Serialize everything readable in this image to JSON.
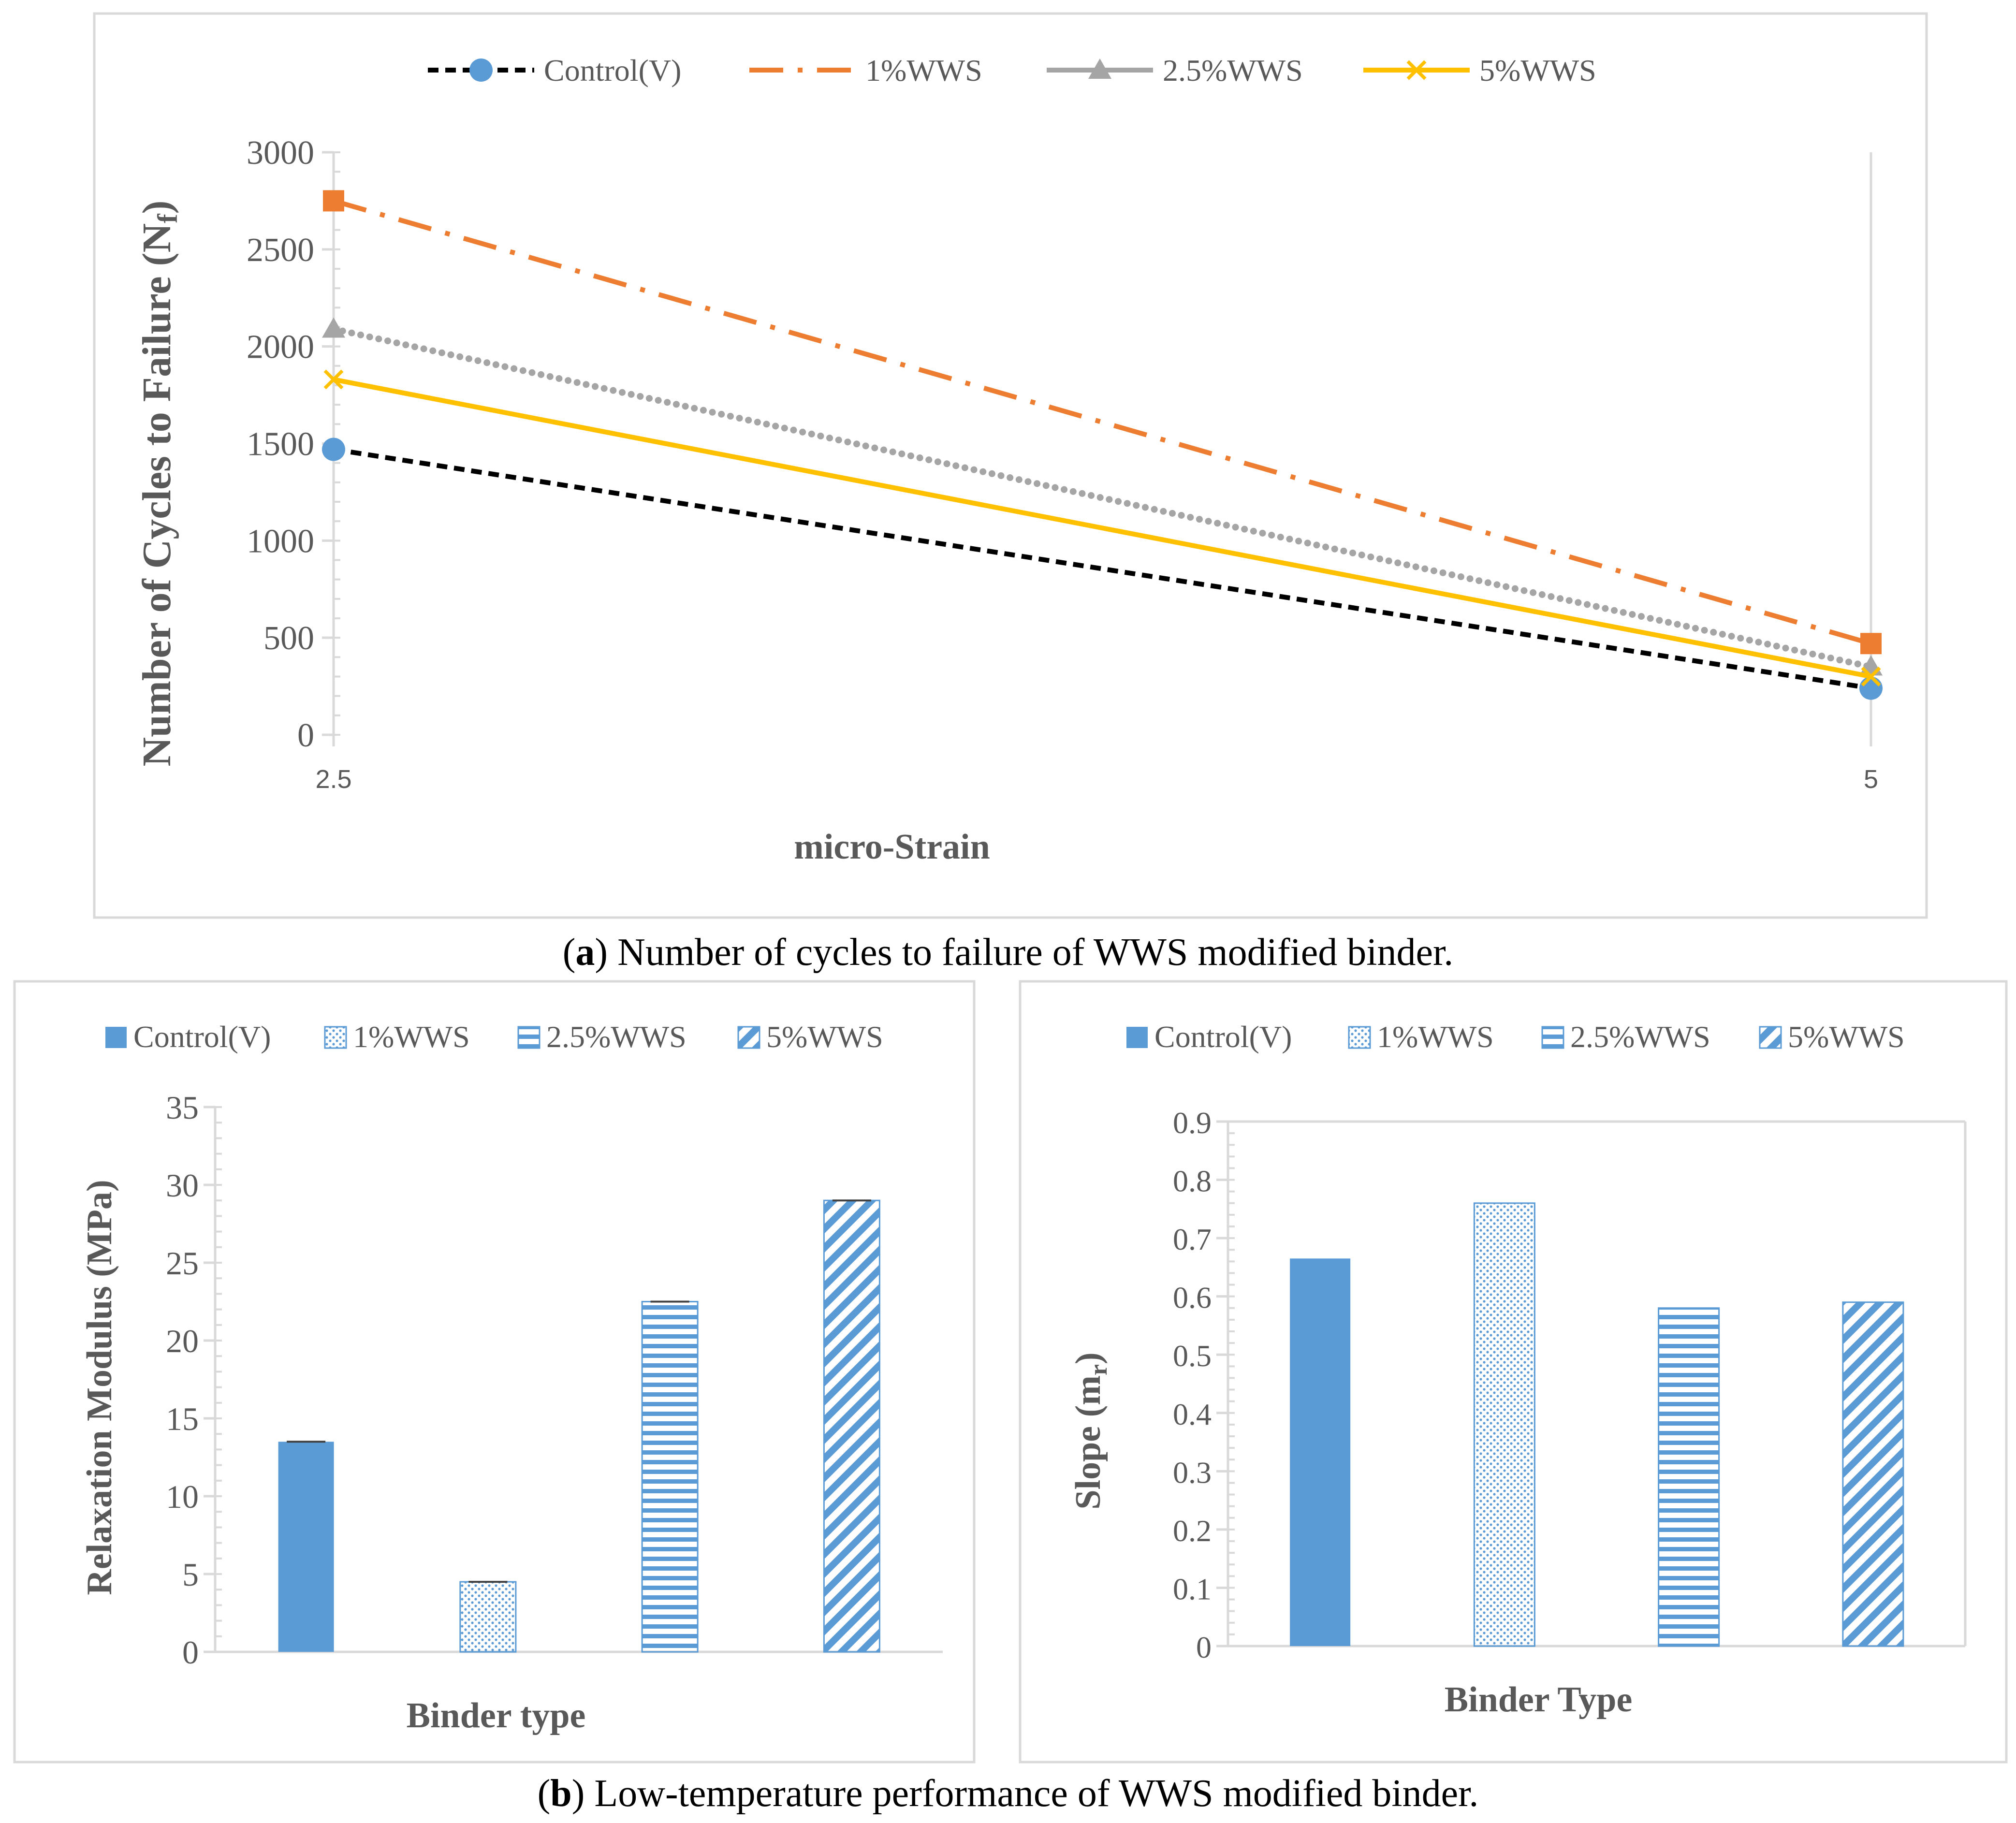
{
  "caption_a": {
    "letter": "a",
    "text": "Number of cycles to failure of WWS modified binder."
  },
  "caption_b": {
    "letter": "b",
    "text": "Low-temperature performance of WWS modified binder."
  },
  "chart_data": [
    {
      "type": "line",
      "xlabel": "micro-Strain",
      "ylabel": "Number of Cycles to Failure (N",
      "ylabel_sub": "f",
      "ylabel_end": ")",
      "x": [
        2.5,
        5
      ],
      "x_tick_labels": [
        "2.5",
        "5"
      ],
      "ylim": [
        0,
        3000
      ],
      "y_ticks": [
        0,
        500,
        1000,
        1500,
        2000,
        2500,
        3000
      ],
      "legend_position": "top",
      "series": [
        {
          "name": "Control(V)",
          "values": [
            1470,
            240
          ],
          "color": "#000000",
          "marker_color": "#5B9BD5",
          "marker": "circle",
          "style": "dash"
        },
        {
          "name": "1%WWS",
          "values": [
            2750,
            470
          ],
          "color": "#ED7D31",
          "marker_color": "#ED7D31",
          "marker": "square",
          "style": "dashdot"
        },
        {
          "name": "2.5%WWS",
          "values": [
            2090,
            350
          ],
          "color": "#A5A5A5",
          "marker_color": "#A5A5A5",
          "marker": "triangle",
          "style": "dot"
        },
        {
          "name": "5%WWS",
          "values": [
            1830,
            300
          ],
          "color": "#FFC000",
          "marker_color": "#FFC000",
          "marker": "x",
          "style": "solid"
        }
      ]
    },
    {
      "type": "bar",
      "xlabel": "Binder type",
      "ylabel": "Relaxation Modulus (MPa)",
      "categories": [
        "Control(V)",
        "1%WWS",
        "2.5%WWS",
        "5%WWS"
      ],
      "values": [
        13.5,
        4.5,
        22.5,
        29.0
      ],
      "ylim": [
        0,
        35
      ],
      "y_ticks": [
        0,
        5,
        10,
        15,
        20,
        25,
        30,
        35
      ],
      "legend_position": "top",
      "patterns": [
        "solid",
        "dots",
        "hlines",
        "diagonal"
      ],
      "color": "#5B9BD5"
    },
    {
      "type": "bar",
      "xlabel": "Binder Type",
      "ylabel": "Slope (m",
      "ylabel_sub": "r",
      "ylabel_end": ")",
      "categories": [
        "Control(V)",
        "1%WWS",
        "2.5%WWS",
        "5%WWS"
      ],
      "values": [
        0.665,
        0.76,
        0.58,
        0.59
      ],
      "ylim": [
        0,
        0.9
      ],
      "y_ticks": [
        "0",
        "0.1",
        "0.2",
        "0.3",
        "0.4",
        "0.5",
        "0.6",
        "0.7",
        "0.8",
        "0.9"
      ],
      "legend_position": "top",
      "patterns": [
        "solid",
        "dots",
        "hlines",
        "diagonal"
      ],
      "color": "#5B9BD5"
    }
  ]
}
